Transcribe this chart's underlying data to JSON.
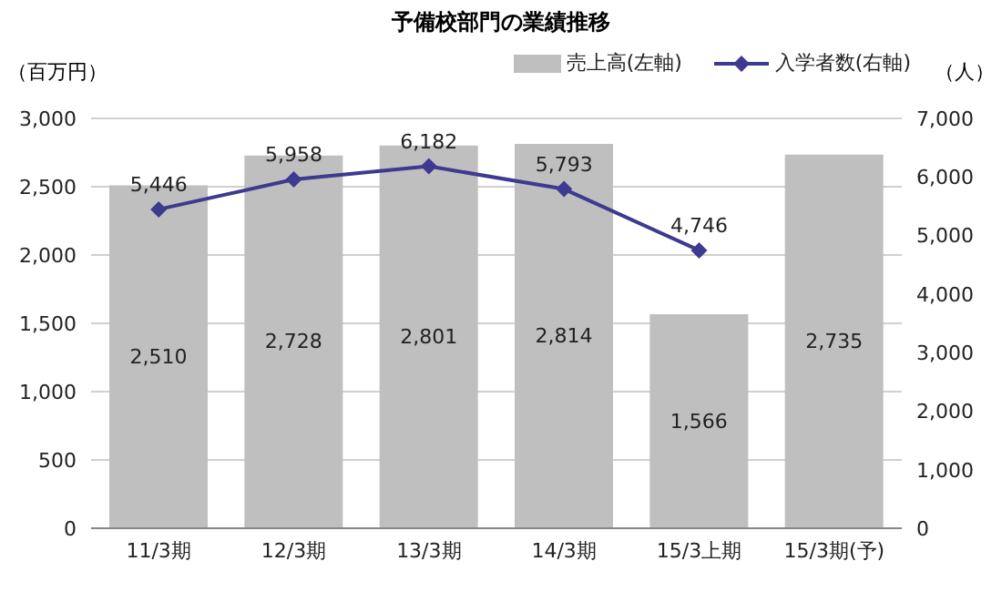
{
  "chart_data": {
    "type": "bar",
    "title": "予備校部門の業績推移",
    "ylabel": "（百万円）",
    "y2label": "（人）",
    "categories": [
      "11/3期",
      "12/3期",
      "13/3期",
      "14/3期",
      "15/3上期",
      "15/3期(予)"
    ],
    "series": [
      {
        "name": "売上高(左軸)",
        "color": "#bfbfbf",
        "values": [
          2510,
          2728,
          2801,
          2814,
          1566,
          2735
        ],
        "value_labels": [
          "2,510",
          "2,728",
          "2,801",
          "2,814",
          "1,566",
          "2,735"
        ]
      },
      {
        "name": "入学者数(右軸)",
        "type": "line",
        "axis": "y2",
        "color": "#3d3a8f",
        "marker": "diamond",
        "values": [
          5446,
          5958,
          6182,
          5793,
          4746,
          null
        ],
        "value_labels": [
          "5,446",
          "5,958",
          "6,182",
          "5,793",
          "4,746",
          null
        ]
      }
    ],
    "ylim": [
      0,
      3000
    ],
    "yticks": [
      0,
      500,
      {
        "value": 1000,
        "label": "1,000"
      },
      {
        "value": 1500,
        "label": "1,500"
      },
      {
        "value": 2000,
        "label": "2,000"
      },
      {
        "value": 2500,
        "label": "2,500"
      },
      {
        "value": 3000,
        "label": "3,000"
      }
    ],
    "y2lim": [
      0,
      7000
    ],
    "y2ticks": [
      0,
      {
        "value": 1000,
        "label": "1,000"
      },
      {
        "value": 2000,
        "label": "2,000"
      },
      {
        "value": 3000,
        "label": "3,000"
      },
      {
        "value": 4000,
        "label": "4,000"
      },
      {
        "value": 5000,
        "label": "5,000"
      },
      {
        "value": 6000,
        "label": "6,000"
      },
      {
        "value": 7000,
        "label": "7,000"
      }
    ],
    "grid": "y",
    "legend": "top right"
  }
}
